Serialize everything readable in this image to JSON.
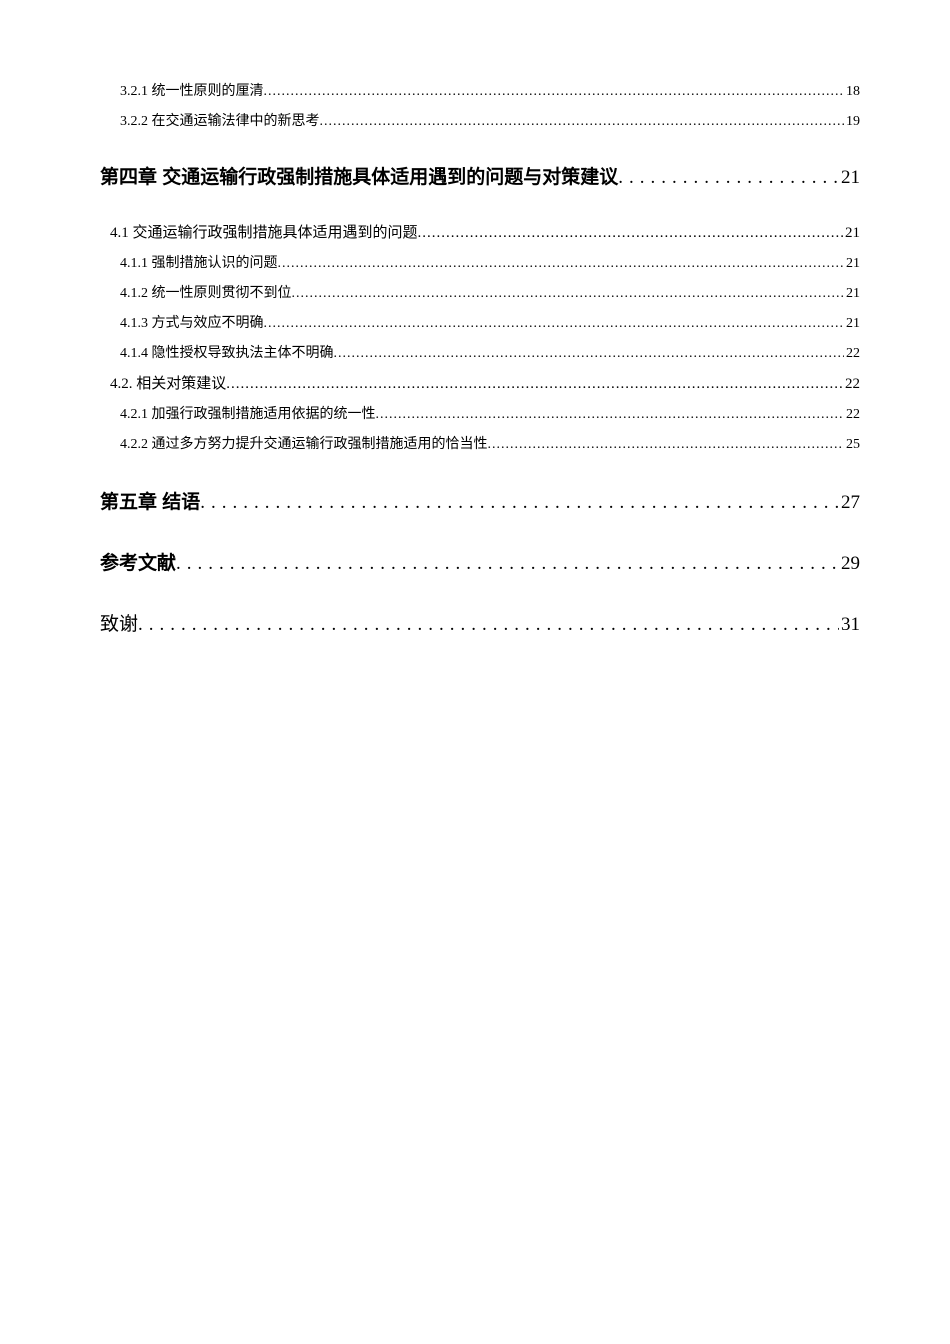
{
  "entries": [
    {
      "level": "level-3",
      "label": "3.2.1 统一性原则的厘清",
      "page": "18",
      "gap": ""
    },
    {
      "level": "level-3",
      "label": "3.2.2 在交通运输法律中的新思考",
      "page": "19",
      "gap": ""
    },
    {
      "level": "level-1",
      "label": "第四章 交通运输行政强制措施具体适用遇到的问题与对策建议",
      "page": "21",
      "gap": "chapter-gap"
    },
    {
      "level": "level-2",
      "label": "4.1 交通运输行政强制措施具体适用遇到的问题",
      "page": "21",
      "gap": "chapter-gap"
    },
    {
      "level": "level-3",
      "label": "4.1.1 强制措施认识的问题",
      "page": "21",
      "gap": ""
    },
    {
      "level": "level-3",
      "label": "4.1.2 统一性原则贯彻不到位",
      "page": "21",
      "gap": ""
    },
    {
      "level": "level-3",
      "label": "4.1.3 方式与效应不明确",
      "page": "21",
      "gap": ""
    },
    {
      "level": "level-3",
      "label": "4.1.4 隐性授权导致执法主体不明确",
      "page": "22",
      "gap": ""
    },
    {
      "level": "level-2",
      "label": "4.2. 相关对策建议",
      "page": "22",
      "gap": ""
    },
    {
      "level": "level-3",
      "label": "4.2.1 加强行政强制措施适用依据的统一性",
      "page": "22",
      "gap": ""
    },
    {
      "level": "level-3",
      "label": "4.2.2 通过多方努力提升交通运输行政强制措施适用的恰当性",
      "page": "25",
      "gap": ""
    },
    {
      "level": "level-1",
      "label": "第五章 结语",
      "page": "27",
      "gap": "big-gap"
    },
    {
      "level": "level-1",
      "label": "参考文献",
      "page": "29",
      "gap": "big-gap"
    },
    {
      "level": "level-1-plain",
      "label": "致谢",
      "page": "31",
      "gap": "big-gap"
    }
  ],
  "leaders": {
    "dots_tight": "..........................................................................................................................................................................................................",
    "dots_wide": "........................................................................."
  }
}
